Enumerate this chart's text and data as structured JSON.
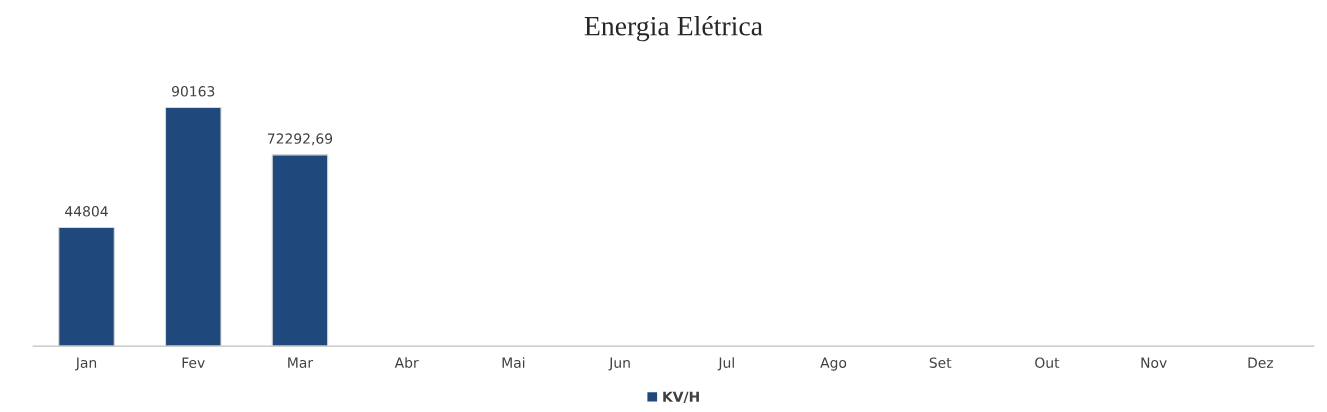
{
  "chart_data": {
    "type": "bar",
    "title": "Energia Elétrica",
    "categories": [
      "Jan",
      "Fev",
      "Mar",
      "Abr",
      "Mai",
      "Jun",
      "Jul",
      "Ago",
      "Set",
      "Out",
      "Nov",
      "Dez"
    ],
    "series": [
      {
        "name": "KV/H",
        "color": "#1f497d",
        "values": [
          44804,
          90163,
          72292.69,
          null,
          null,
          null,
          null,
          null,
          null,
          null,
          null,
          null
        ],
        "value_labels": [
          "44804",
          "90163",
          "72292,69",
          null,
          null,
          null,
          null,
          null,
          null,
          null,
          null,
          null
        ]
      }
    ],
    "legend": "bottom",
    "grid": false
  }
}
